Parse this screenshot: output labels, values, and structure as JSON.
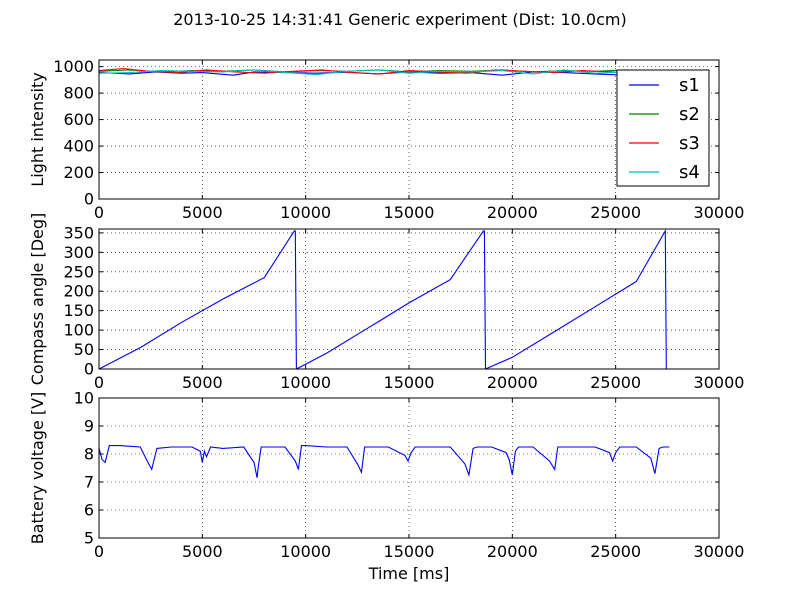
{
  "figure": {
    "title": "2013-10-25 14:31:41 Generic experiment (Dist: 10.0cm)"
  },
  "chart_data": [
    {
      "type": "line",
      "ylabel": "Light intensity",
      "xlabel": "",
      "xlim": [
        0,
        30000
      ],
      "ylim": [
        0,
        1050
      ],
      "x_ticks": [
        0,
        5000,
        10000,
        15000,
        20000,
        25000,
        30000
      ],
      "y_ticks": [
        0,
        200,
        400,
        600,
        800,
        1000
      ],
      "grid": true,
      "legend_position": "right",
      "series": [
        {
          "name": "s1",
          "color": "#0000ff",
          "x": [
            0,
            1500,
            2700,
            4000,
            5000,
            6500,
            7500,
            9000,
            10500,
            12000,
            13500,
            15000,
            16500,
            18000,
            19500,
            21000,
            22500,
            24000,
            25500,
            27000,
            27600
          ],
          "y": [
            955,
            945,
            960,
            950,
            955,
            935,
            960,
            955,
            950,
            958,
            945,
            960,
            950,
            955,
            935,
            960,
            955,
            945,
            935,
            955,
            955
          ]
        },
        {
          "name": "s2",
          "color": "#008000",
          "x": [
            0,
            1500,
            3000,
            4500,
            6000,
            7500,
            9000,
            10500,
            12000,
            13500,
            15000,
            16500,
            18000,
            19500,
            21000,
            22500,
            24000,
            25500,
            27000,
            27600
          ],
          "y": [
            965,
            975,
            960,
            970,
            965,
            975,
            960,
            970,
            965,
            975,
            960,
            970,
            965,
            975,
            960,
            970,
            965,
            975,
            965,
            965
          ]
        },
        {
          "name": "s3",
          "color": "#ff0000",
          "x": [
            0,
            1200,
            2400,
            3800,
            5200,
            6600,
            8000,
            9400,
            10800,
            12200,
            13600,
            15000,
            16400,
            17800,
            19200,
            20600,
            22000,
            23400,
            24800,
            26200,
            27600
          ],
          "y": [
            970,
            985,
            965,
            955,
            975,
            960,
            950,
            965,
            975,
            955,
            945,
            970,
            960,
            950,
            975,
            965,
            955,
            970,
            960,
            950,
            960
          ]
        },
        {
          "name": "s4",
          "color": "#00bfbf",
          "x": [
            0,
            1500,
            3000,
            4500,
            6000,
            7500,
            9000,
            10500,
            12000,
            13500,
            15000,
            16500,
            18000,
            19500,
            21000,
            22500,
            24000,
            25500,
            27000,
            27600
          ],
          "y": [
            950,
            955,
            970,
            965,
            960,
            975,
            955,
            940,
            965,
            975,
            950,
            965,
            960,
            970,
            945,
            975,
            950,
            960,
            970,
            965
          ]
        }
      ]
    },
    {
      "type": "line",
      "ylabel": "Compass angle [Deg]",
      "xlabel": "",
      "xlim": [
        0,
        30000
      ],
      "ylim": [
        0,
        360
      ],
      "x_ticks": [
        0,
        5000,
        10000,
        15000,
        20000,
        25000,
        30000
      ],
      "y_ticks": [
        0,
        50,
        100,
        150,
        200,
        250,
        300,
        350
      ],
      "grid": true,
      "series": [
        {
          "color": "#0000ff",
          "x": [
            0,
            2000,
            4000,
            6000,
            8000,
            9450,
            9500,
            9550,
            11000,
            13000,
            15000,
            17000,
            18600,
            18650,
            18700,
            20000,
            22000,
            24000,
            26000,
            27400,
            27450
          ],
          "y": [
            0,
            55,
            120,
            180,
            235,
            355,
            355,
            0,
            40,
            105,
            170,
            230,
            355,
            355,
            0,
            30,
            95,
            160,
            225,
            355,
            0
          ]
        }
      ]
    },
    {
      "type": "line",
      "ylabel": "Battery voltage [V]",
      "xlabel": "Time [ms]",
      "xlim": [
        0,
        30000
      ],
      "ylim": [
        5,
        10
      ],
      "x_ticks": [
        0,
        5000,
        10000,
        15000,
        20000,
        25000,
        30000
      ],
      "y_ticks": [
        5,
        6,
        7,
        8,
        9,
        10
      ],
      "grid": true,
      "series": [
        {
          "color": "#0000ff",
          "x": [
            0,
            150,
            300,
            500,
            1000,
            2000,
            2300,
            2550,
            2800,
            3500,
            4500,
            4900,
            5000,
            5100,
            5200,
            5400,
            6000,
            7000,
            7500,
            7650,
            7700,
            7850,
            8000,
            9000,
            9500,
            9650,
            9800,
            10000,
            11000,
            12000,
            12500,
            12700,
            12850,
            13000,
            14000,
            14800,
            14950,
            15100,
            15300,
            16000,
            17000,
            17700,
            17900,
            18100,
            18300,
            19000,
            19700,
            19850,
            20000,
            20150,
            20300,
            21000,
            21800,
            22050,
            22200,
            22300,
            23000,
            24000,
            24700,
            24850,
            25000,
            25200,
            26000,
            26700,
            26900,
            27100,
            27300,
            27600
          ],
          "y": [
            8.2,
            7.8,
            7.7,
            8.3,
            8.3,
            8.25,
            7.8,
            7.45,
            8.2,
            8.25,
            8.25,
            8.1,
            7.7,
            8.1,
            7.9,
            8.25,
            8.2,
            8.25,
            7.7,
            7.15,
            7.5,
            8.25,
            8.25,
            8.25,
            7.75,
            7.45,
            8.3,
            8.3,
            8.25,
            8.25,
            7.65,
            7.35,
            8.25,
            8.25,
            8.25,
            7.95,
            7.75,
            8.05,
            8.25,
            8.25,
            8.25,
            7.65,
            7.25,
            8.2,
            8.25,
            8.25,
            8.05,
            7.8,
            7.25,
            8.1,
            8.25,
            8.25,
            7.75,
            7.45,
            8.25,
            8.25,
            8.25,
            8.25,
            8.05,
            7.75,
            8.05,
            8.25,
            8.25,
            7.85,
            7.3,
            8.2,
            8.25,
            8.25
          ]
        }
      ]
    }
  ]
}
